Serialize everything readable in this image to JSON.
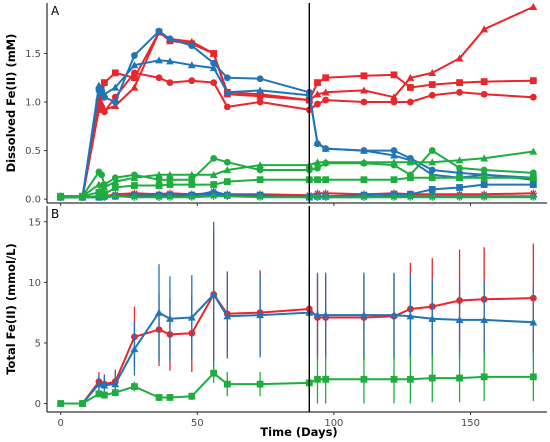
{
  "colors": {
    "red": "#e8262b",
    "blue": "#2175b7",
    "green": "#1fad3f",
    "axis": "#000000",
    "marker": "#000000"
  },
  "chart_data": [
    {
      "type": "line",
      "panel_label": "A",
      "ylabel": "Dissolved Fe(II) (mM)",
      "xlim": [
        -5,
        178
      ],
      "ylim": [
        -0.04,
        2.02
      ],
      "yticks": [
        0.0,
        0.5,
        1.0,
        1.5
      ],
      "ytick_labels": [
        "0.0",
        "0.5",
        "1.0",
        "1.5"
      ],
      "xticks": [
        0,
        50,
        100,
        150
      ],
      "vline_x": 91,
      "grid": false,
      "series": [
        {
          "color": "red",
          "marker": "circle",
          "x": [
            0,
            8,
            14,
            15,
            16,
            20,
            27,
            36,
            40,
            48,
            56,
            61,
            73,
            91,
            94,
            97,
            111,
            122,
            128,
            136,
            146,
            155,
            173
          ],
          "y": [
            0.02,
            0.02,
            0.92,
            0.95,
            0.9,
            1.05,
            1.3,
            1.25,
            1.2,
            1.22,
            1.2,
            0.95,
            1.0,
            0.92,
            0.98,
            1.02,
            1.0,
            1.0,
            1.0,
            1.07,
            1.1,
            1.08,
            1.05
          ]
        },
        {
          "color": "red",
          "marker": "square",
          "x": [
            0,
            8,
            14,
            15,
            16,
            20,
            27,
            36,
            40,
            48,
            56,
            61,
            73,
            91,
            94,
            97,
            111,
            122,
            128,
            136,
            146,
            155,
            173
          ],
          "y": [
            0.02,
            0.02,
            1.0,
            1.05,
            1.2,
            1.3,
            1.25,
            1.72,
            1.63,
            1.6,
            1.5,
            1.1,
            1.08,
            1.02,
            1.2,
            1.25,
            1.27,
            1.28,
            1.15,
            1.18,
            1.2,
            1.21,
            1.22
          ]
        },
        {
          "color": "red",
          "marker": "triangle",
          "x": [
            0,
            8,
            14,
            15,
            16,
            20,
            27,
            36,
            40,
            48,
            56,
            61,
            73,
            91,
            94,
            97,
            111,
            122,
            128,
            136,
            146,
            155,
            173
          ],
          "y": [
            0.02,
            0.02,
            0.95,
            0.98,
            0.92,
            0.96,
            1.15,
            1.72,
            1.65,
            1.62,
            1.5,
            1.08,
            1.06,
            1.02,
            1.08,
            1.1,
            1.12,
            1.05,
            1.25,
            1.3,
            1.45,
            1.75,
            1.98
          ]
        },
        {
          "color": "red",
          "marker": "star",
          "x": [
            0,
            8,
            14,
            15,
            16,
            20,
            27,
            36,
            40,
            48,
            56,
            61,
            73,
            91,
            94,
            97,
            111,
            122,
            128,
            136,
            146,
            155,
            173
          ],
          "y": [
            0.02,
            0.02,
            0.03,
            0.03,
            0.03,
            0.05,
            0.06,
            0.05,
            0.06,
            0.05,
            0.06,
            0.05,
            0.05,
            0.04,
            0.06,
            0.06,
            0.05,
            0.06,
            0.05,
            0.05,
            0.05,
            0.05,
            0.06
          ]
        },
        {
          "color": "blue",
          "marker": "circle",
          "x": [
            0,
            8,
            14,
            15,
            16,
            20,
            27,
            36,
            40,
            48,
            56,
            61,
            73,
            91,
            94,
            97,
            111,
            122,
            128,
            136,
            146,
            155,
            173
          ],
          "y": [
            0.02,
            0.02,
            1.12,
            1.1,
            1.05,
            1.0,
            1.48,
            1.73,
            1.65,
            1.58,
            1.4,
            1.25,
            1.24,
            1.1,
            0.57,
            0.52,
            0.5,
            0.5,
            0.42,
            0.3,
            0.27,
            0.25,
            0.2
          ]
        },
        {
          "color": "blue",
          "marker": "triangle",
          "x": [
            0,
            8,
            14,
            15,
            16,
            20,
            27,
            36,
            40,
            48,
            56,
            61,
            73,
            91,
            94,
            97,
            111,
            122,
            128,
            136,
            146,
            155,
            173
          ],
          "y": [
            0.02,
            0.02,
            1.17,
            1.15,
            1.08,
            1.15,
            1.38,
            1.43,
            1.42,
            1.38,
            1.35,
            1.1,
            1.12,
            1.07,
            0.58,
            0.52,
            0.5,
            0.45,
            0.4,
            0.25,
            0.22,
            0.25,
            0.22
          ]
        },
        {
          "color": "blue",
          "marker": "square",
          "x": [
            0,
            8,
            14,
            15,
            16,
            20,
            27,
            36,
            40,
            48,
            56,
            61,
            73,
            91,
            94,
            97,
            111,
            122,
            128,
            136,
            146,
            155,
            173
          ],
          "y": [
            0.02,
            0.02,
            0.02,
            0.03,
            0.03,
            0.03,
            0.04,
            0.04,
            0.04,
            0.04,
            0.05,
            0.04,
            0.04,
            0.02,
            0.03,
            0.03,
            0.04,
            0.05,
            0.05,
            0.1,
            0.12,
            0.15,
            0.15
          ]
        },
        {
          "color": "blue",
          "marker": "star",
          "x": [
            0,
            8,
            14,
            15,
            16,
            20,
            27,
            36,
            40,
            48,
            56,
            61,
            73,
            91,
            94,
            97,
            111,
            122,
            128,
            136,
            146,
            155,
            173
          ],
          "y": [
            0.02,
            0.02,
            0.02,
            0.02,
            0.02,
            0.03,
            0.03,
            0.02,
            0.03,
            0.03,
            0.08,
            0.04,
            0.03,
            0.02,
            0.02,
            0.02,
            0.02,
            0.03,
            0.03,
            0.03,
            0.03,
            0.03,
            0.03
          ]
        },
        {
          "color": "green",
          "marker": "circle",
          "x": [
            0,
            8,
            14,
            15,
            16,
            20,
            27,
            36,
            40,
            48,
            56,
            61,
            73,
            91,
            94,
            97,
            111,
            122,
            128,
            136,
            146,
            155,
            173
          ],
          "y": [
            0.03,
            0.03,
            0.28,
            0.25,
            0.15,
            0.22,
            0.25,
            0.2,
            0.2,
            0.2,
            0.42,
            0.38,
            0.3,
            0.3,
            0.32,
            0.37,
            0.37,
            0.35,
            0.25,
            0.5,
            0.32,
            0.3,
            0.27
          ]
        },
        {
          "color": "green",
          "marker": "triangle",
          "x": [
            0,
            8,
            14,
            15,
            16,
            20,
            27,
            36,
            40,
            48,
            56,
            61,
            73,
            91,
            94,
            97,
            111,
            122,
            128,
            136,
            146,
            155,
            173
          ],
          "y": [
            0.03,
            0.03,
            0.15,
            0.14,
            0.12,
            0.18,
            0.22,
            0.25,
            0.25,
            0.25,
            0.25,
            0.3,
            0.35,
            0.35,
            0.38,
            0.38,
            0.38,
            0.38,
            0.38,
            0.38,
            0.4,
            0.42,
            0.49
          ]
        },
        {
          "color": "green",
          "marker": "square",
          "x": [
            0,
            8,
            14,
            15,
            16,
            20,
            27,
            36,
            40,
            48,
            56,
            61,
            73,
            91,
            94,
            97,
            111,
            122,
            128,
            136,
            146,
            155,
            173
          ],
          "y": [
            0.03,
            0.03,
            0.07,
            0.06,
            0.05,
            0.12,
            0.14,
            0.14,
            0.15,
            0.15,
            0.15,
            0.18,
            0.2,
            0.2,
            0.2,
            0.2,
            0.2,
            0.2,
            0.22,
            0.22,
            0.22,
            0.22,
            0.22
          ]
        },
        {
          "color": "green",
          "marker": "star",
          "x": [
            0,
            8,
            14,
            15,
            16,
            20,
            27,
            36,
            40,
            48,
            56,
            61,
            73,
            91,
            94,
            97,
            111,
            122,
            128,
            136,
            146,
            155,
            173
          ],
          "y": [
            0.02,
            0.02,
            0.03,
            0.03,
            0.03,
            0.03,
            0.02,
            0.02,
            0.02,
            0.02,
            0.03,
            0.03,
            0.02,
            0.02,
            0.02,
            0.02,
            0.02,
            0.02,
            0.02,
            0.02,
            0.02,
            0.02,
            0.02
          ]
        }
      ]
    },
    {
      "type": "line",
      "panel_label": "B",
      "ylabel": "Total Fe(II) (mmol/L)",
      "xlabel": "Time (Days)",
      "xlim": [
        -5,
        178
      ],
      "ylim": [
        -0.7,
        16.3
      ],
      "yticks": [
        0,
        5,
        10,
        15
      ],
      "ytick_labels": [
        "0",
        "5",
        "10",
        "15"
      ],
      "xticks": [
        0,
        50,
        100,
        150
      ],
      "xtick_labels": [
        "0",
        "50",
        "100",
        "150"
      ],
      "vline_x": 91,
      "grid": false,
      "series": [
        {
          "color": "red",
          "marker": "circle",
          "x": [
            0,
            8,
            14,
            16,
            20,
            27,
            36,
            40,
            48,
            56,
            61,
            73,
            91,
            94,
            97,
            111,
            122,
            128,
            136,
            146,
            155,
            173
          ],
          "y": [
            0,
            0,
            1.8,
            1.6,
            1.8,
            5.5,
            6.1,
            5.7,
            5.8,
            9.0,
            7.4,
            7.5,
            7.8,
            7.1,
            7.1,
            7.1,
            7.2,
            7.8,
            8.0,
            8.5,
            8.6,
            8.7
          ],
          "err": [
            0,
            0,
            0.8,
            0.8,
            1.0,
            2.5,
            3.0,
            3.0,
            3.2,
            5.5,
            3.5,
            3.5,
            3.5,
            3.5,
            3.5,
            3.5,
            3.5,
            3.8,
            4.0,
            4.2,
            4.3,
            4.5
          ]
        },
        {
          "color": "blue",
          "marker": "triangle",
          "x": [
            0,
            8,
            14,
            16,
            20,
            27,
            36,
            40,
            48,
            56,
            61,
            73,
            91,
            94,
            97,
            111,
            122,
            128,
            136,
            146,
            155,
            173
          ],
          "y": [
            0,
            0,
            1.6,
            1.5,
            1.6,
            4.5,
            7.5,
            7.0,
            7.1,
            9.0,
            7.2,
            7.3,
            7.5,
            7.3,
            7.3,
            7.3,
            7.3,
            7.2,
            7.0,
            6.9,
            6.9,
            6.7
          ],
          "err": [
            0,
            0,
            0.8,
            0.8,
            1.0,
            2.2,
            4.0,
            3.5,
            3.5,
            6.0,
            3.5,
            3.5,
            3.5,
            3.5,
            3.5,
            3.5,
            3.5,
            3.5,
            3.3,
            3.2,
            3.2,
            3.0
          ]
        },
        {
          "color": "green",
          "marker": "square",
          "x": [
            0,
            8,
            14,
            16,
            20,
            27,
            36,
            40,
            48,
            56,
            61,
            73,
            91,
            94,
            97,
            111,
            122,
            128,
            136,
            146,
            155,
            173
          ],
          "y": [
            0,
            0,
            0.8,
            0.7,
            0.9,
            1.4,
            0.5,
            0.5,
            0.6,
            2.5,
            1.6,
            1.6,
            1.7,
            2.0,
            2.0,
            2.0,
            2.0,
            2.0,
            2.1,
            2.1,
            2.2,
            2.2
          ],
          "err": [
            0,
            0,
            0.3,
            0.3,
            0.3,
            0.4,
            0.3,
            0.3,
            0.3,
            0.8,
            1.0,
            1.0,
            1.0,
            2.0,
            2.0,
            2.0,
            2.0,
            2.0,
            2.0,
            2.0,
            2.0,
            2.0
          ]
        }
      ]
    }
  ]
}
